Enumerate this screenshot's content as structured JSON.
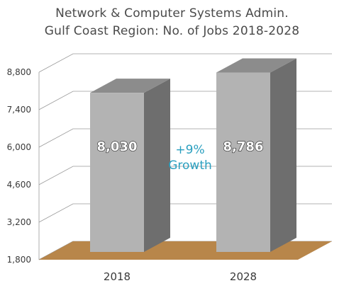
{
  "chart_data": {
    "type": "bar",
    "title": "Network & Computer Systems Admin.",
    "subtitle": "Gulf Coast Region: No. of Jobs 2018-2028",
    "categories": [
      "2018",
      "2028"
    ],
    "values": [
      8030,
      8786
    ],
    "value_labels": [
      "8,030",
      "8,786"
    ],
    "yticks": [
      "1,800",
      "3,200",
      "4,600",
      "6,000",
      "7,400",
      "8,800"
    ],
    "ylim": [
      1800,
      8800
    ],
    "annotation": {
      "line1": "+9%",
      "line2": "Growth"
    },
    "grid": true,
    "colors": {
      "bar_front": "#b3b3b3",
      "bar_side": "#6e6e6e",
      "floor": "#b8864a",
      "annotation": "#2a9fbf"
    }
  }
}
